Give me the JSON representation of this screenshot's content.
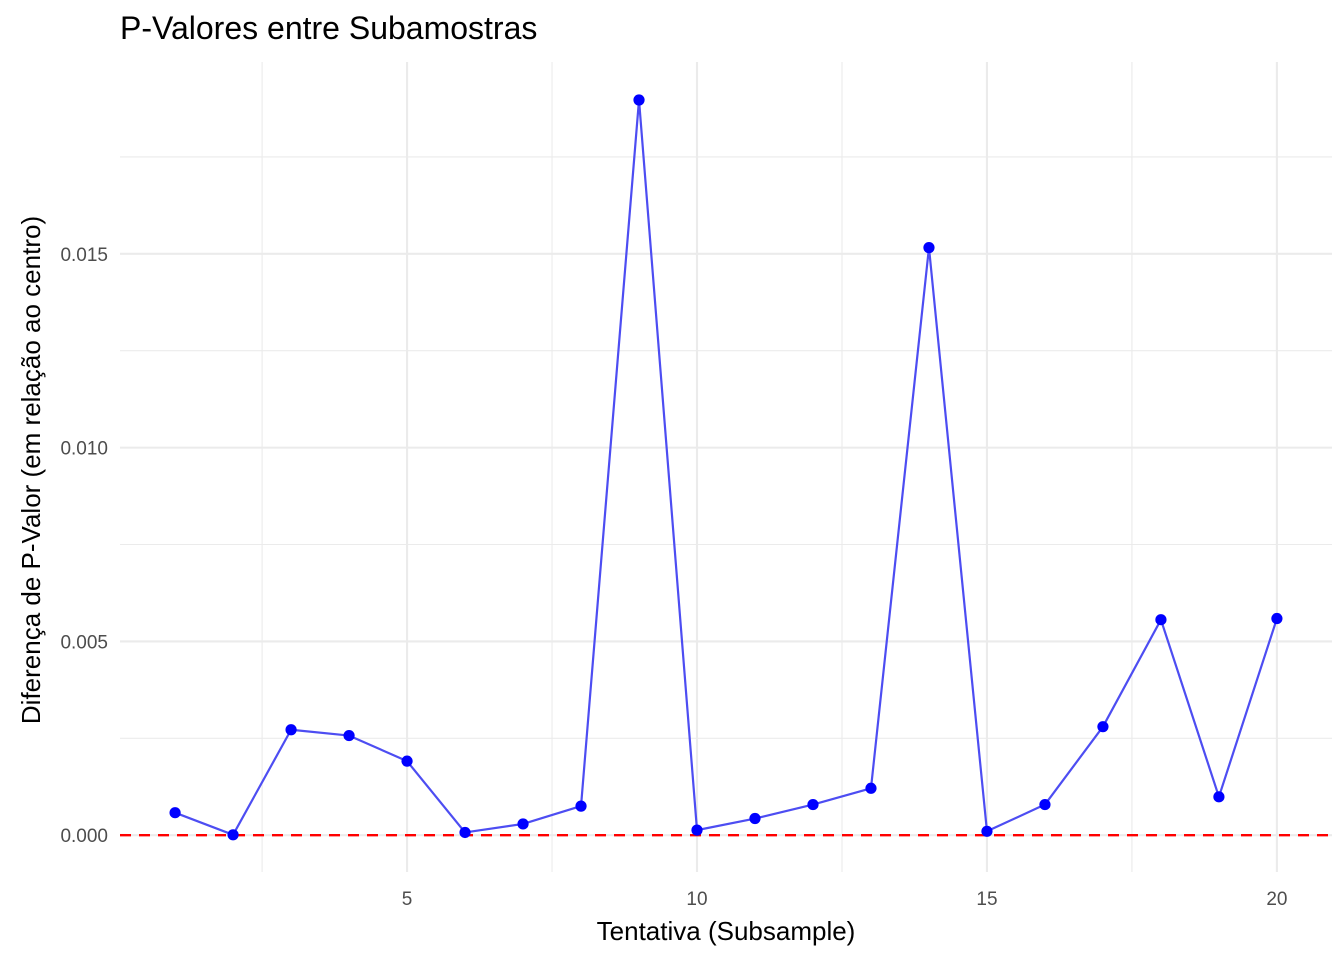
{
  "chart_data": {
    "type": "line",
    "title": "P-Valores entre Subamostras",
    "xlabel": "Tentativa (Subsample)",
    "ylabel": "Diferença de P-Valor (em relação ao centro)",
    "xlim": [
      0.05,
      20.95
    ],
    "ylim": [
      -0.00095,
      0.01995
    ],
    "x_ticks": [
      5,
      10,
      15,
      20
    ],
    "x_tick_labels": [
      "5",
      "10",
      "15",
      "20"
    ],
    "y_ticks": [
      0.0,
      0.005,
      0.01,
      0.015
    ],
    "y_tick_labels": [
      "0.000",
      "0.005",
      "0.010",
      "0.015"
    ],
    "x_minor_ticks": [
      2.5,
      7.5,
      12.5,
      17.5
    ],
    "y_minor_ticks": [
      0.0025,
      0.0075,
      0.0125,
      0.0175
    ],
    "grid": true,
    "series": [
      {
        "x": [
          1,
          2,
          3,
          4,
          5,
          6,
          7,
          8,
          9,
          10,
          11,
          12,
          13,
          14,
          15,
          16,
          17,
          18,
          19,
          20
        ],
        "values": [
          0.00058,
          1e-05,
          0.00272,
          0.00257,
          0.00191,
          7e-05,
          0.00029,
          0.00075,
          0.01897,
          0.00013,
          0.00043,
          0.00079,
          0.00121,
          0.01516,
          0.0001,
          0.00079,
          0.0028,
          0.00556,
          0.00099,
          0.00559
        ],
        "line_color": "#4d4df2",
        "point_color": "#0000ff"
      }
    ],
    "reference_lines": [
      {
        "y": 0.0,
        "color": "#ff0000",
        "style": "dashed"
      }
    ]
  }
}
